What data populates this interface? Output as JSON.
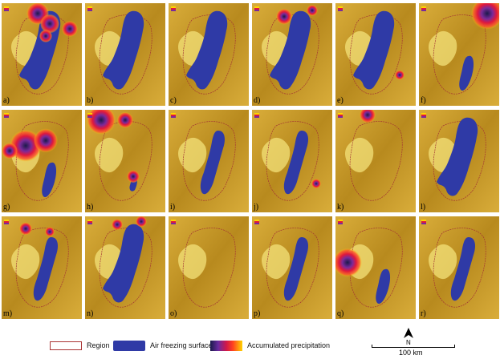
{
  "colors": {
    "terrain_dark": "#b88a1e",
    "terrain_mid": "#d9ad3a",
    "terrain_light": "#f3e27a",
    "air_freezing": "#2f3aa6",
    "region_outline": "#a33333",
    "precip_red": "#e0183c",
    "precip_purple": "#7a2a9a"
  },
  "panels": [
    {
      "label": "a)",
      "lake": "large",
      "blobs": [
        [
          0.45,
          0.1,
          0.14
        ],
        [
          0.6,
          0.2,
          0.12
        ],
        [
          0.85,
          0.25,
          0.1
        ],
        [
          0.55,
          0.32,
          0.08
        ]
      ]
    },
    {
      "label": "b)",
      "lake": "large",
      "blobs": []
    },
    {
      "label": "c)",
      "lake": "large",
      "blobs": []
    },
    {
      "label": "d)",
      "lake": "large",
      "blobs": [
        [
          0.4,
          0.13,
          0.1
        ],
        [
          0.75,
          0.07,
          0.07
        ]
      ]
    },
    {
      "label": "e)",
      "lake": "large",
      "blobs": [
        [
          0.8,
          0.7,
          0.06
        ]
      ]
    },
    {
      "label": "f)",
      "lake": "small",
      "blobs": [
        [
          0.85,
          0.1,
          0.2
        ]
      ]
    },
    {
      "label": "g)",
      "lake": "small",
      "blobs": [
        [
          0.3,
          0.35,
          0.2
        ],
        [
          0.55,
          0.3,
          0.15
        ],
        [
          0.1,
          0.4,
          0.1
        ]
      ]
    },
    {
      "label": "h)",
      "lake": "tiny",
      "blobs": [
        [
          0.2,
          0.1,
          0.18
        ],
        [
          0.6,
          0.65,
          0.08
        ],
        [
          0.5,
          0.1,
          0.1
        ]
      ]
    },
    {
      "label": "i)",
      "lake": "medium",
      "blobs": []
    },
    {
      "label": "j)",
      "lake": "medium",
      "blobs": [
        [
          0.8,
          0.72,
          0.06
        ]
      ]
    },
    {
      "label": "k)",
      "lake": "none",
      "blobs": [
        [
          0.4,
          0.05,
          0.1
        ]
      ]
    },
    {
      "label": "l)",
      "lake": "large",
      "blobs": []
    },
    {
      "label": "m)",
      "lake": "medium",
      "blobs": [
        [
          0.3,
          0.12,
          0.08
        ],
        [
          0.6,
          0.15,
          0.06
        ]
      ]
    },
    {
      "label": "n)",
      "lake": "large",
      "blobs": [
        [
          0.4,
          0.08,
          0.07
        ],
        [
          0.7,
          0.05,
          0.07
        ]
      ]
    },
    {
      "label": "o)",
      "lake": "none",
      "blobs": []
    },
    {
      "label": "p)",
      "lake": "medium",
      "blobs": []
    },
    {
      "label": "q)",
      "lake": "small",
      "blobs": [
        [
          0.15,
          0.45,
          0.18
        ]
      ]
    },
    {
      "label": "r)",
      "lake": "medium",
      "blobs": []
    }
  ],
  "legend": {
    "region": "Region",
    "air_freezing": "Air freezing surface",
    "precip": "Accumulated precipitation",
    "north": "N",
    "scale": "100 km"
  }
}
